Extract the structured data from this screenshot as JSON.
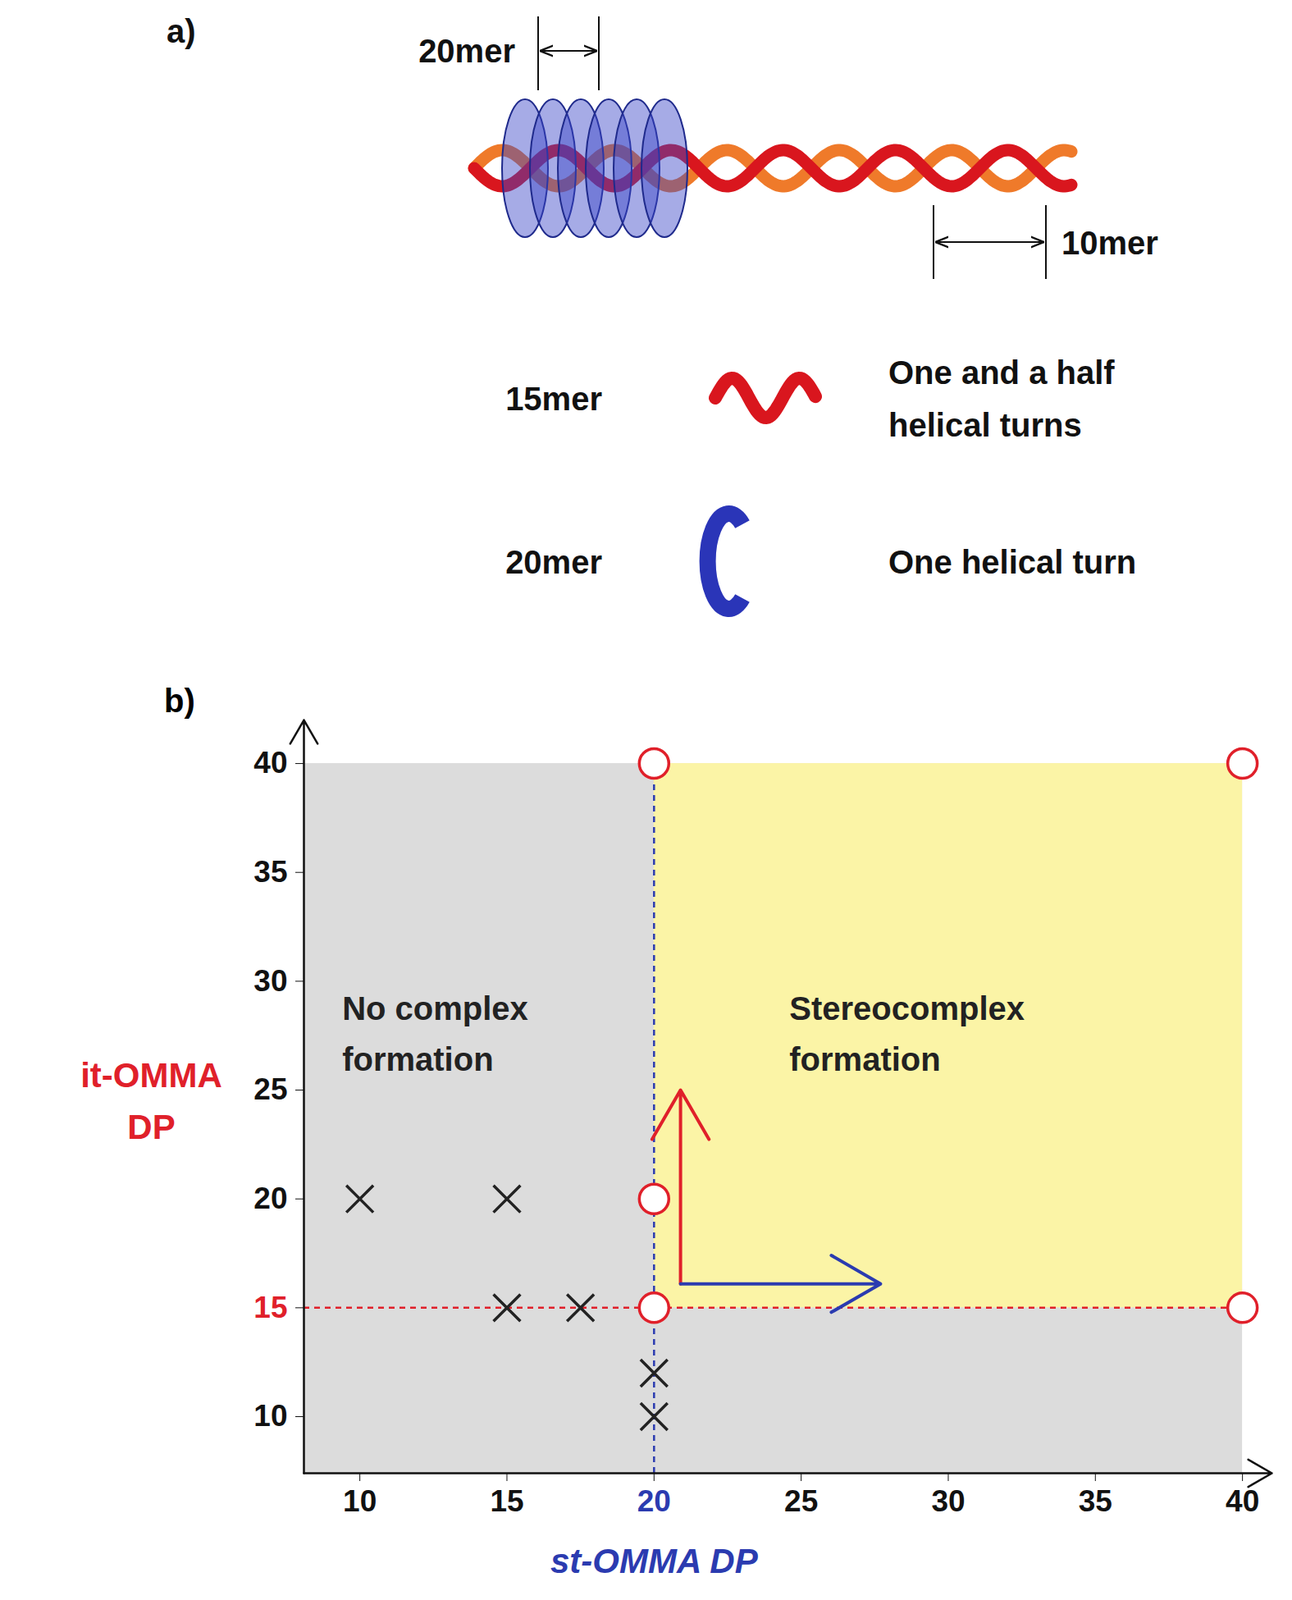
{
  "diagram": {
    "panel_label": "a)",
    "top_length": "20mer",
    "helix_repeat": "10mer",
    "items": [
      {
        "label": "15mer",
        "shape": "helix",
        "description": "One and a half\nhelical turns"
      },
      {
        "label": "20mer",
        "shape": "ring",
        "description": "One helical turn"
      }
    ]
  },
  "chart_data": {
    "type": "scatter",
    "panel_label": "b)",
    "x_label": "st-OMMA DP",
    "y_label": "it-OMMA\nDP",
    "xlim": [
      8.1,
      41
    ],
    "ylim": [
      7.4,
      42
    ],
    "xticks": [
      10,
      15,
      20,
      25,
      30,
      35,
      40
    ],
    "yticks": [
      10,
      15,
      20,
      25,
      30,
      35,
      40
    ],
    "regions": [
      {
        "label": "No complex\nformation",
        "x": [
          8.1,
          40
        ],
        "y": [
          7.4,
          40
        ],
        "color": "#dcdcdc",
        "label_x": 9.4,
        "label_y": 27.8
      },
      {
        "label": "Stereocomplex\nformation",
        "x": [
          20,
          40
        ],
        "y": [
          15,
          40
        ],
        "color": "#fbf4a6",
        "label_x": 24.6,
        "label_y": 27.8
      }
    ],
    "reference_lines": [
      {
        "axis": "x",
        "value": 20,
        "from": 7.4,
        "to": 40,
        "color": "#2b3bb0"
      },
      {
        "axis": "y",
        "value": 15,
        "from": 8.1,
        "to": 40,
        "color": "#e0202a"
      }
    ],
    "arrows": [
      {
        "x1": 20.9,
        "y1": 16.1,
        "x2": 20.9,
        "y2": 25.0,
        "color": "#e0202a"
      },
      {
        "x1": 20.9,
        "y1": 16.1,
        "x2": 27.7,
        "y2": 16.1,
        "color": "#2b3bb0"
      }
    ],
    "series": [
      {
        "marker": "circle",
        "color": "#e0202a",
        "x": [
          20,
          40,
          20,
          20,
          40
        ],
        "values": [
          40,
          40,
          20,
          15,
          15
        ]
      },
      {
        "marker": "x",
        "color": "#222222",
        "x": [
          10,
          15,
          15,
          17.5,
          20,
          20
        ],
        "values": [
          20,
          20,
          15,
          15,
          12,
          10
        ]
      }
    ]
  }
}
